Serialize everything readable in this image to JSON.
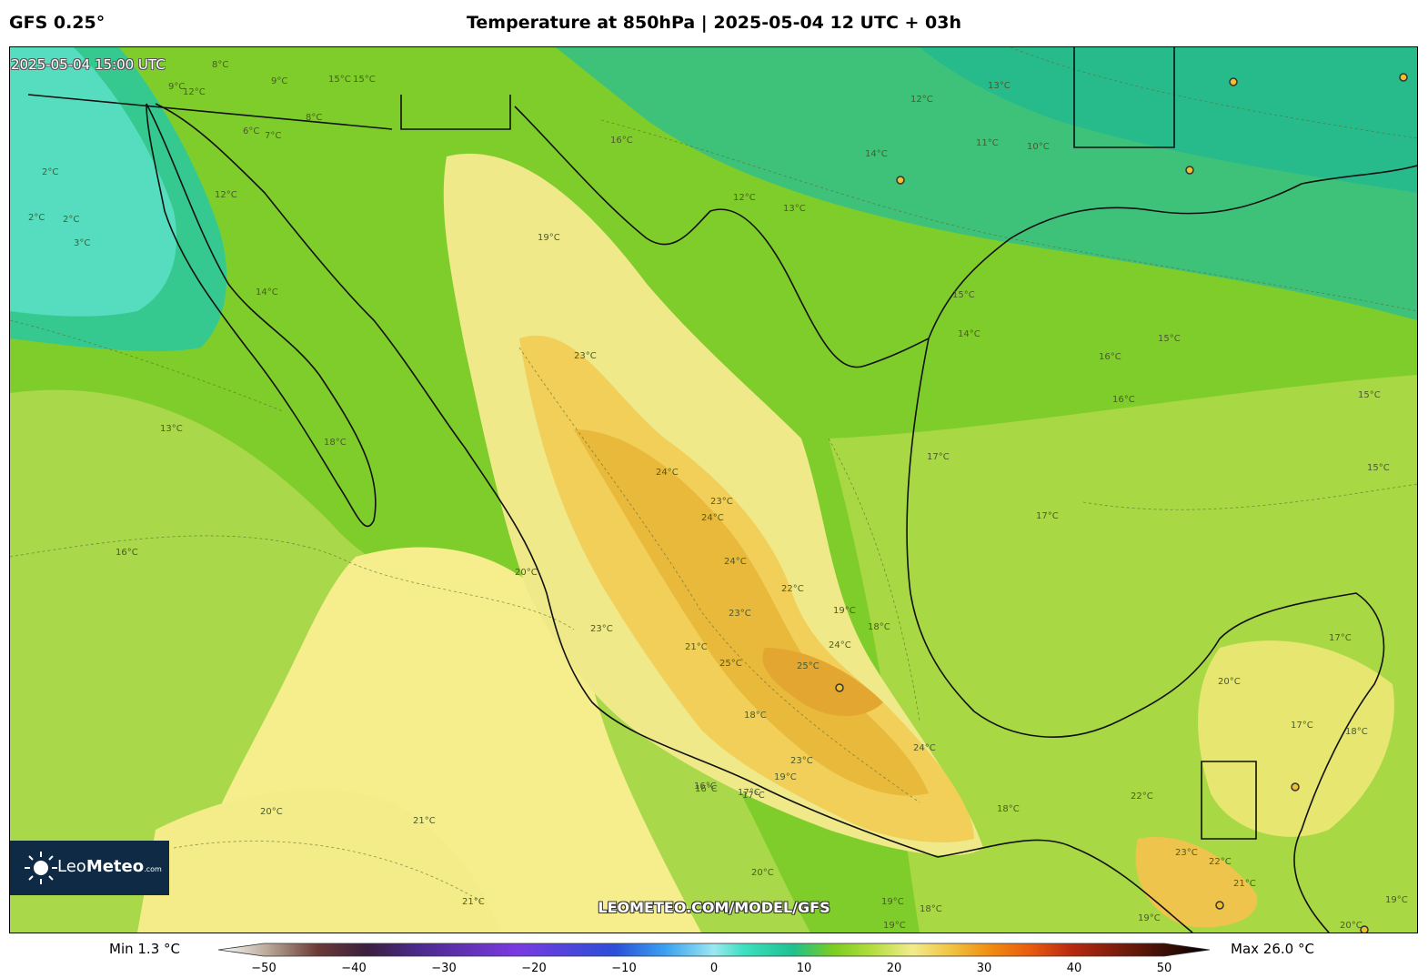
{
  "header": {
    "model": "GFS 0.25°",
    "title": "Temperature at 850hPa | 2025-05-04 12 UTC + 03h"
  },
  "map": {
    "valid_time": "2025-05-04 15:00 UTC",
    "watermark": "LEOMETEO.COM/MODEL/GFS",
    "isotherm_labels": [
      {
        "text": "8°C"
      },
      {
        "text": "9°C"
      },
      {
        "text": "15°C"
      },
      {
        "text": "15°C"
      },
      {
        "text": "12°C"
      },
      {
        "text": "9°C"
      },
      {
        "text": "8°C"
      },
      {
        "text": "6°C"
      },
      {
        "text": "7°C"
      },
      {
        "text": "2°C"
      },
      {
        "text": "2°C"
      },
      {
        "text": "2°C"
      },
      {
        "text": "3°C"
      },
      {
        "text": "12°C"
      },
      {
        "text": "14°C"
      },
      {
        "text": "16°C"
      },
      {
        "text": "19°C"
      },
      {
        "text": "12°C"
      },
      {
        "text": "13°C"
      },
      {
        "text": "14°C"
      },
      {
        "text": "11°C"
      },
      {
        "text": "10°C"
      },
      {
        "text": "12°C"
      },
      {
        "text": "13°C"
      },
      {
        "text": "15°C"
      },
      {
        "text": "14°C"
      },
      {
        "text": "16°C"
      },
      {
        "text": "15°C"
      },
      {
        "text": "16°C"
      },
      {
        "text": "15°C"
      },
      {
        "text": "15°C"
      },
      {
        "text": "17°C"
      },
      {
        "text": "17°C"
      },
      {
        "text": "13°C"
      },
      {
        "text": "18°C"
      },
      {
        "text": "16°C"
      },
      {
        "text": "20°C"
      },
      {
        "text": "23°C"
      },
      {
        "text": "24°C"
      },
      {
        "text": "23°C"
      },
      {
        "text": "24°C"
      },
      {
        "text": "24°C"
      },
      {
        "text": "22°C"
      },
      {
        "text": "23°C"
      },
      {
        "text": "19°C"
      },
      {
        "text": "18°C"
      },
      {
        "text": "24°C"
      },
      {
        "text": "25°C"
      },
      {
        "text": "25°C"
      },
      {
        "text": "21°C"
      },
      {
        "text": "23°C"
      },
      {
        "text": "18°C"
      },
      {
        "text": "23°C"
      },
      {
        "text": "19°C"
      },
      {
        "text": "24°C"
      },
      {
        "text": "16°C"
      },
      {
        "text": "17°C"
      },
      {
        "text": "18°C"
      },
      {
        "text": "20°C"
      },
      {
        "text": "21°C"
      },
      {
        "text": "21°C"
      },
      {
        "text": "20°C"
      },
      {
        "text": "19°C"
      },
      {
        "text": "18°C"
      },
      {
        "text": "19°C"
      },
      {
        "text": "22°C"
      },
      {
        "text": "23°C"
      },
      {
        "text": "22°C"
      },
      {
        "text": "21°C"
      },
      {
        "text": "20°C"
      },
      {
        "text": "19°C"
      },
      {
        "text": "17°C"
      },
      {
        "text": "17°C"
      },
      {
        "text": "18°C"
      },
      {
        "text": "20°C"
      },
      {
        "text": "16°C"
      },
      {
        "text": "17°C"
      },
      {
        "text": "19°C"
      }
    ],
    "city_markers": 8
  },
  "logo": {
    "brand_light": "Leo",
    "brand_bold": "Meteo",
    "domain": ".com"
  },
  "colorbar": {
    "min_label": "Min 1.3 °C",
    "max_label": "Max 26.0 °C",
    "ticks": [
      "−50",
      "−40",
      "−30",
      "−20",
      "−10",
      "0",
      "10",
      "20",
      "30",
      "40",
      "50"
    ],
    "range": [
      -50,
      50
    ],
    "color_stops": [
      {
        "v": -50,
        "c": "#ffffff"
      },
      {
        "v": -45,
        "c": "#b9a898"
      },
      {
        "v": -40,
        "c": "#6b3a36"
      },
      {
        "v": -35,
        "c": "#3a1f3f"
      },
      {
        "v": -30,
        "c": "#4a2a8a"
      },
      {
        "v": -20,
        "c": "#7a3ae0"
      },
      {
        "v": -10,
        "c": "#2a4fd8"
      },
      {
        "v": -5,
        "c": "#3aa0f0"
      },
      {
        "v": 0,
        "c": "#9ae8f0"
      },
      {
        "v": 3,
        "c": "#3de0c0"
      },
      {
        "v": 8,
        "c": "#20c090"
      },
      {
        "v": 12,
        "c": "#7acd20"
      },
      {
        "v": 16,
        "c": "#b5dd40"
      },
      {
        "v": 20,
        "c": "#f2ec8c"
      },
      {
        "v": 24,
        "c": "#f0c240"
      },
      {
        "v": 28,
        "c": "#f08a10"
      },
      {
        "v": 32,
        "c": "#e85a10"
      },
      {
        "v": 36,
        "c": "#b82a10"
      },
      {
        "v": 42,
        "c": "#6a1a0a"
      },
      {
        "v": 50,
        "c": "#000000"
      }
    ]
  }
}
